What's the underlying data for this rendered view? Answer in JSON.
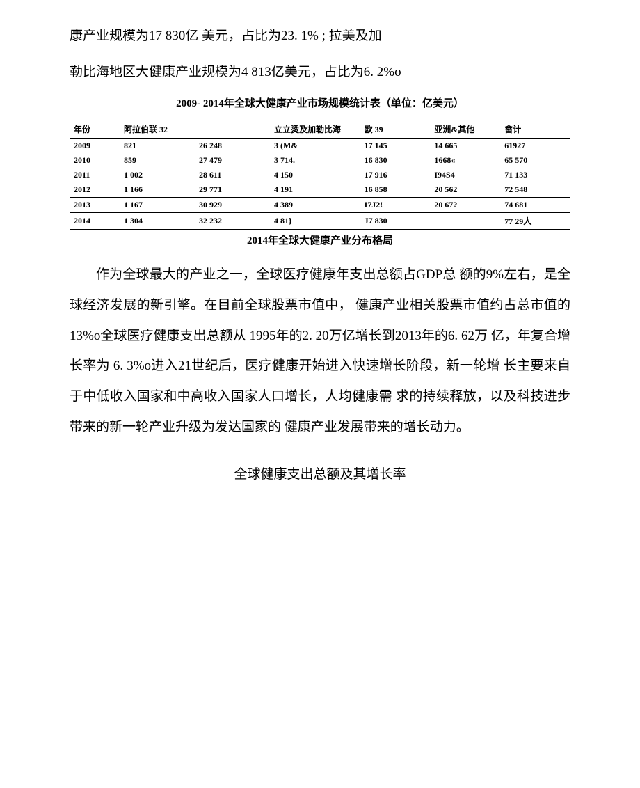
{
  "intro": {
    "line1": "康产业规模为17 830亿 美元，占比为23. 1% ; 拉美及加",
    "line2": "勒比海地区大健康产业规模为4 813亿美元，占比为6. 2%o"
  },
  "table": {
    "title": "2009- 2014年全球大健康产业市场规模统计表（单位：亿美元）",
    "columns": [
      "年份",
      "阿拉伯联 32",
      "",
      "立立烫及加勒比海",
      "欧 39",
      "亚洲&其他",
      "畲计"
    ],
    "header_fontsize": 12,
    "cell_fontsize": 12,
    "border_color": "#000000",
    "rows": [
      [
        "2009",
        "821",
        "26 248",
        "3 (M&",
        "17 145",
        "14 665",
        "61927"
      ],
      [
        "2010",
        "859",
        "27 479",
        "3 714.",
        "16 830",
        "1668«",
        "65 570"
      ],
      [
        "2011",
        "1 002",
        "28 611",
        "4 150",
        "17 916",
        "I94S4",
        "71 133"
      ],
      [
        "2012",
        "1 166",
        "29 771",
        "4 191",
        "16 858",
        "20 562",
        "72 548"
      ],
      [
        "2013",
        "1 167",
        "30 929",
        "4 389",
        "I7J2!",
        "20 67?",
        "74 681"
      ],
      [
        "2014",
        "1 304",
        "32 232",
        "4 81}",
        "J7 830",
        "",
        "77 29人"
      ]
    ],
    "subtitle": "2014年全球大健康产业分布格局"
  },
  "body_paragraph": "作为全球最大的产业之一，全球医疗健康年支出总额占GDP总   额的9%左右，是全球经济发展的新引擎。在目前全球股票市值中，   健康产业相关股票市值约占总市值的13%o全球医疗健康支出总额从  1995年的2. 20万亿增长到2013年的6. 62万 亿，年复合增长率为 6. 3%o进入21世纪后，医疗健康开始进入快速增长阶段，新一轮增     长主要来自于中低收入国家和中高收入国家人口增长，人均健康需     求的持续释放，以及科技进步带来的新一轮产业升级为发达国家的   健康产业发展带来的增长动力。",
  "section_title": "全球健康支出总额及其增长率",
  "colors": {
    "text": "#000000",
    "background": "#ffffff"
  },
  "typography": {
    "body_fontsize": 19,
    "title_fontsize": 15,
    "line_height": 2.3
  }
}
